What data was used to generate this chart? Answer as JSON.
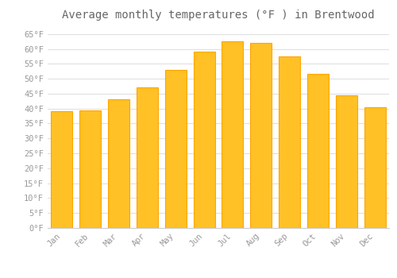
{
  "title": "Average monthly temperatures (°F ) in Brentwood",
  "months": [
    "Jan",
    "Feb",
    "Mar",
    "Apr",
    "May",
    "Jun",
    "Jul",
    "Aug",
    "Sep",
    "Oct",
    "Nov",
    "Dec"
  ],
  "values": [
    39,
    39.5,
    43,
    47,
    53,
    59,
    62.5,
    62,
    57.5,
    51.5,
    44.5,
    40.5
  ],
  "bar_color": "#FFC125",
  "bar_edge_color": "#FFA500",
  "background_color": "#FFFFFF",
  "grid_color": "#E0E0E0",
  "text_color": "#999999",
  "ylim": [
    0,
    68
  ],
  "yticks": [
    0,
    5,
    10,
    15,
    20,
    25,
    30,
    35,
    40,
    45,
    50,
    55,
    60,
    65
  ],
  "title_fontsize": 10,
  "tick_fontsize": 7.5,
  "font_family": "monospace",
  "title_color": "#666666"
}
